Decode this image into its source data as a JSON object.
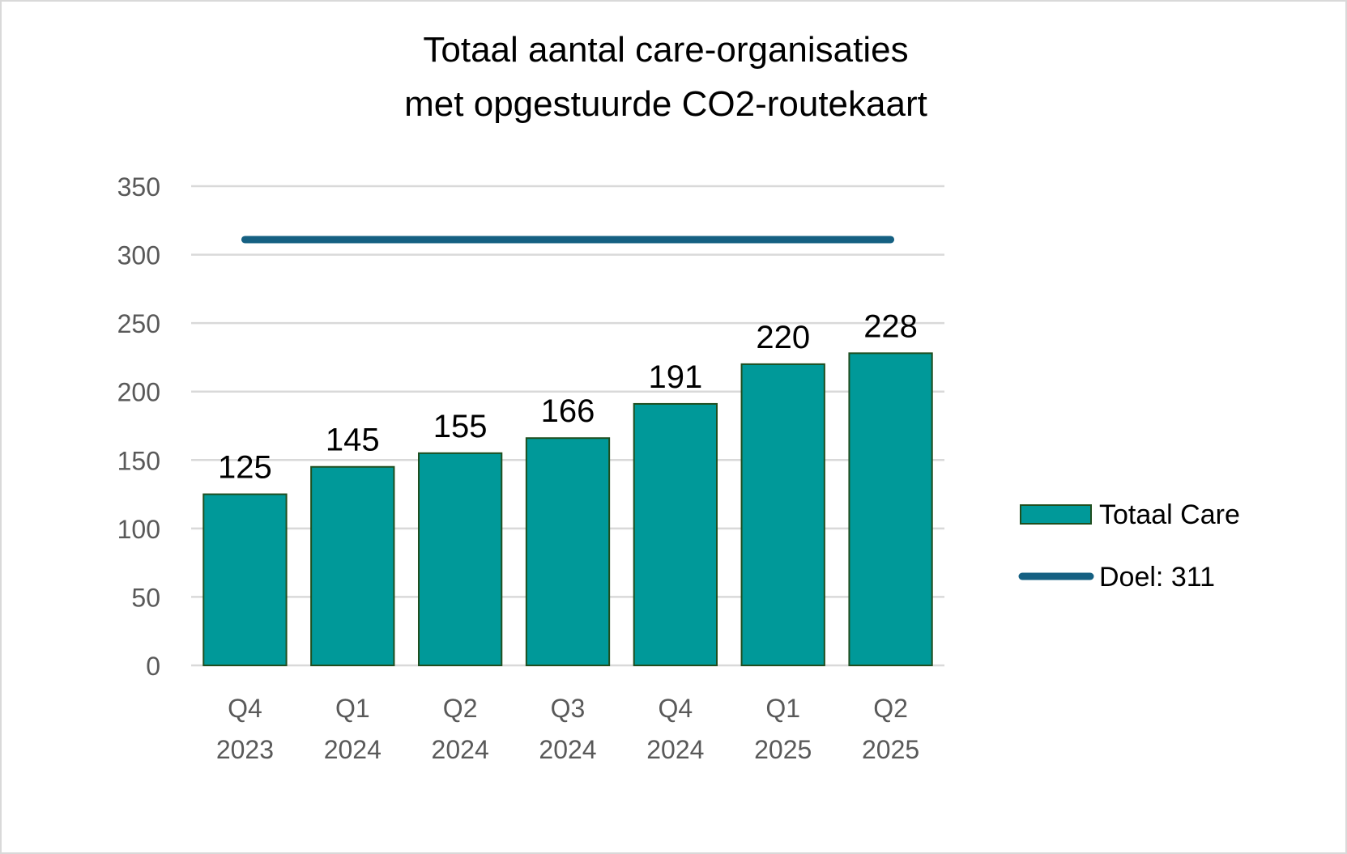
{
  "chart_data": {
    "type": "bar",
    "title_lines": [
      "Totaal aantal care-organisaties",
      "met opgestuurde CO2-routekaart"
    ],
    "categories": [
      [
        "Q4",
        "2023"
      ],
      [
        "Q1",
        "2024"
      ],
      [
        "Q2",
        "2024"
      ],
      [
        "Q3",
        "2024"
      ],
      [
        "Q4",
        "2024"
      ],
      [
        "Q1",
        "2025"
      ],
      [
        "Q2",
        "2025"
      ]
    ],
    "series": [
      {
        "name": "Totaal Care",
        "kind": "bar",
        "values": [
          125,
          145,
          155,
          166,
          191,
          220,
          228
        ],
        "color": "#009999",
        "edge_color": "#1f4e1f"
      },
      {
        "name": "Doel: 311",
        "kind": "line",
        "value": 311,
        "color": "#156082"
      }
    ],
    "ylim": [
      0,
      350
    ],
    "yticks": [
      0,
      50,
      100,
      150,
      200,
      250,
      300,
      350
    ],
    "grid": true,
    "legend_position": "right",
    "data_labels": true,
    "xlabel": "",
    "ylabel": ""
  }
}
